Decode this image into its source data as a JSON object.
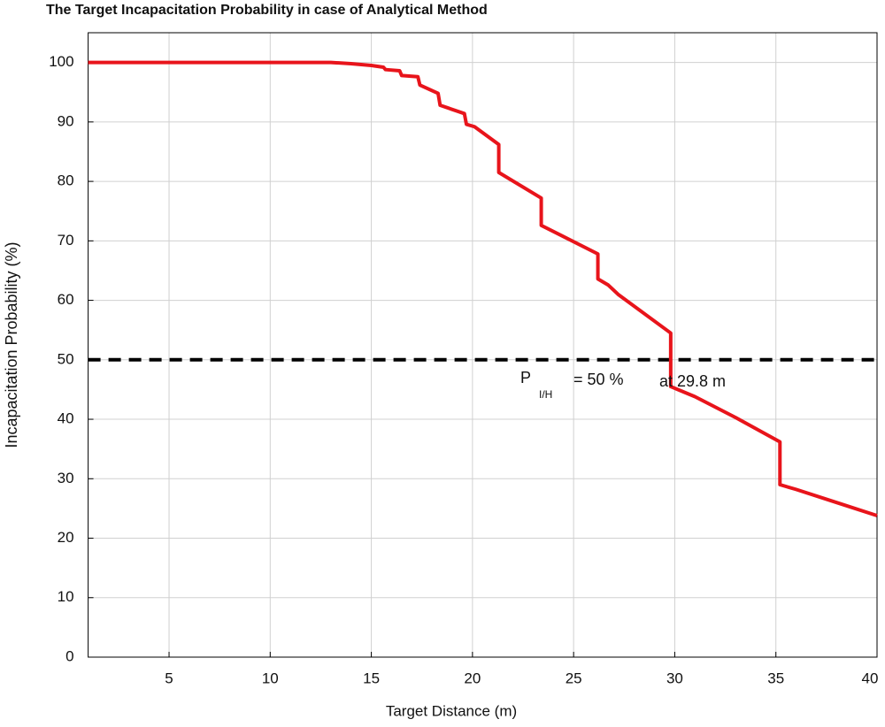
{
  "chart_data": {
    "type": "line",
    "title": "The Target Incapacitation Probability in case of Analytical Method",
    "x_label": "Target Distance (m)",
    "y_label": "Incapacitation Probability (%)",
    "x": [
      1,
      13,
      14,
      15,
      15.6,
      15.7,
      16.4,
      16.5,
      17.3,
      17.4,
      18.3,
      18.4,
      19.6,
      19.7,
      20.1,
      21.3,
      21.3,
      23.4,
      23.4,
      26.2,
      26.2,
      26.7,
      27.2,
      29.8,
      29.8,
      31,
      33,
      35.2,
      35.2,
      36,
      38,
      40
    ],
    "values": [
      100,
      100,
      99.8,
      99.5,
      99.2,
      98.8,
      98.6,
      97.8,
      97.6,
      96.2,
      94.8,
      92.8,
      91.4,
      89.6,
      89.2,
      86.2,
      81.5,
      77.2,
      72.6,
      67.8,
      63.6,
      62.6,
      61,
      54.5,
      45.5,
      43.8,
      40.3,
      36.2,
      29,
      28.2,
      26,
      23.8
    ],
    "color": "#e8141b",
    "xlim": [
      1,
      40
    ],
    "ylim": [
      0,
      105
    ],
    "xticks": [
      5,
      10,
      15,
      20,
      25,
      30,
      35,
      40
    ],
    "yticks": [
      0,
      10,
      20,
      30,
      40,
      50,
      60,
      70,
      80,
      90,
      100
    ],
    "grid": true,
    "hline": {
      "value": 50,
      "color": "#000000"
    },
    "annotation": {
      "symbol": "P",
      "subscript": "I/H",
      "text": "= 50 %",
      "note": "at 29.8 m"
    }
  }
}
